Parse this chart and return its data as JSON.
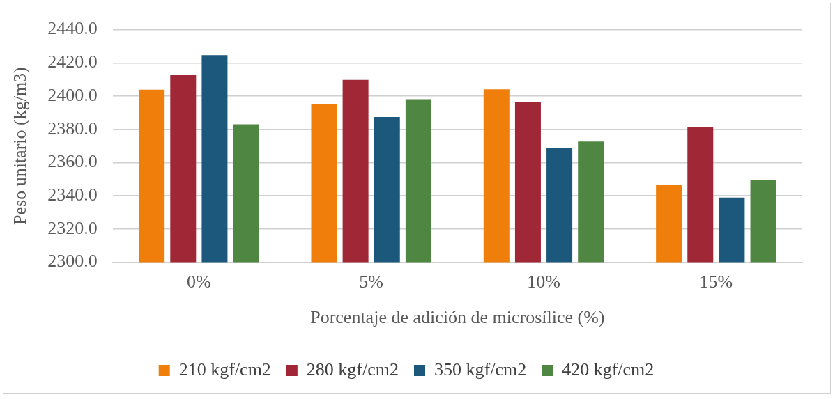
{
  "chart_data": {
    "type": "bar",
    "xlabel": "Porcentaje de adición de microsílice (%)",
    "ylabel": "Peso unitario (kg/m3)",
    "categories": [
      "0%",
      "5%",
      "10%",
      "15%"
    ],
    "series": [
      {
        "name": "210 kgf/cm2",
        "color": "#ef7f0a",
        "values": [
          2403.9,
          2395.0,
          2404.1,
          2346.5
        ]
      },
      {
        "name": "280 kgf/cm2",
        "color": "#a02736",
        "values": [
          2412.8,
          2409.8,
          2396.3,
          2381.5
        ]
      },
      {
        "name": "350 kgf/cm2",
        "color": "#1c587c",
        "values": [
          2424.6,
          2387.4,
          2368.9,
          2338.9
        ]
      },
      {
        "name": "420 kgf/cm2",
        "color": "#4f8641",
        "values": [
          2383.0,
          2398.1,
          2372.7,
          2349.7
        ]
      }
    ],
    "ylim": [
      2300,
      2440
    ],
    "yticks": [
      {
        "value": 2300,
        "label": "2300.0"
      },
      {
        "value": 2320,
        "label": "2320.0"
      },
      {
        "value": 2340,
        "label": "2340.0"
      },
      {
        "value": 2360,
        "label": "2360.0"
      },
      {
        "value": 2380,
        "label": "2380.0"
      },
      {
        "value": 2400,
        "label": "2400.0"
      },
      {
        "value": 2420,
        "label": "2420.0"
      },
      {
        "value": 2440,
        "label": "2440.0"
      }
    ],
    "grid": "y",
    "legend": "bottom"
  }
}
